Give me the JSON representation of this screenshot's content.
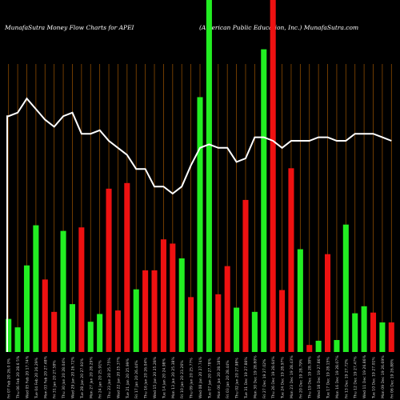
{
  "header": {
    "left": "MunafaSutra  Money Flow  Charts for APEI",
    "right": "(American  Public Education,  Inc.) MunafaSutra.com"
  },
  "colors": {
    "background": "#000000",
    "up": "#22ee22",
    "down": "#ee1111",
    "grid": "#8a4a00",
    "line": "#ffffff",
    "xlabel": "#cfcfcf"
  },
  "chart_data": {
    "type": "bar",
    "title": "MunafaSutra  Money Flow  Charts for APEI",
    "subtitle": "(American  Public Education,  Inc.) MunafaSutra.com",
    "categories": [
      "Fri 07 Feb 20 26.0 0%",
      "Thu 06 Feb 20 28.6 5%",
      "Wed 05 Feb 20 17.74%",
      "Tue 04 Feb 20 26.29%",
      "Mon 03 Feb 20 27.48%",
      "Fri 31 Jan 20 27.58%",
      "Thu 30 Jan 20 28.04%",
      "Wed 29 Jan 20 26.72%",
      "Tue 28 Jan 20 27.93%",
      "Mon 27 Jan 20 28.29%",
      "Fri 24 Jan 20 25.91%",
      "Thu 23 Jan 20 25.75%",
      "Wed 22 Jan 20 25.37%",
      "Tue 21 Jan 20 25.99%",
      "Fri 17 Jan 20 26.44%",
      "Thu 16 Jan 20 26.04%",
      "Wed 15 Jan 20 25.28%",
      "Tue 14 Jan 20 24.98%",
      "Mon 13 Jan 20 25.38%",
      "Fri 10 Jan 20 23.26%",
      "Thu 09 Jan 20 25.77%",
      "Wed 08 Jan 20 27.74%",
      "Tue 07 Jan 20 27.78%",
      "Mon 06 Jan 20 28.18%",
      "Fri 03 Jan 20 28.44%",
      "Thu 02 Jan 20 27.98%",
      "Tue 31 Dec 19 27.86%",
      "Mon 30 Dec 19 28.80%",
      "Fri 27 Dec 19 27.02%",
      "Thu 26 Dec 19 28.64%",
      "Tue 24 Dec 19 28.97%",
      "Mon 23 Dec 19 28.43%",
      "Fri 20 Dec 19 28.79%",
      "Thu 19 Dec 19 28.38%",
      "Wed 18 Dec 19 27.86%",
      "Tue 17 Dec 19 28.15%",
      "Mon 16 Dec 19 28.07%",
      "Fri 13 Dec 19 27.72%",
      "Thu 12 Dec 19 27.47%",
      "Wed 11 Dec 19 26.86%",
      "Tue 10 Dec 19 27.01%",
      "Mon 09 Dec 19 26.69%",
      "Fri 06 Dec 19 26.88%"
    ],
    "colors_sequence": [
      "up",
      "up",
      "up",
      "up",
      "down",
      "down",
      "up",
      "up",
      "down",
      "up",
      "up",
      "down",
      "down",
      "down",
      "up",
      "down",
      "down",
      "down",
      "down",
      "up",
      "down",
      "up",
      "up",
      "down",
      "down",
      "up",
      "down",
      "up",
      "up",
      "down",
      "down",
      "down",
      "up",
      "down",
      "up",
      "down",
      "up",
      "up",
      "up",
      "up",
      "down",
      "up",
      "down"
    ],
    "values": [
      47,
      35,
      123,
      180,
      103,
      57,
      172,
      68,
      177,
      43,
      54,
      232,
      59,
      240,
      89,
      116,
      116,
      160,
      154,
      133,
      78,
      362,
      500,
      82,
      122,
      63,
      216,
      57,
      430,
      500,
      88,
      261,
      146,
      10,
      16,
      139,
      17,
      181,
      55,
      65,
      56,
      42,
      42
    ],
    "line": [
      0.67,
      0.68,
      0.72,
      0.69,
      0.66,
      0.64,
      0.67,
      0.68,
      0.62,
      0.62,
      0.63,
      0.6,
      0.58,
      0.56,
      0.52,
      0.52,
      0.47,
      0.47,
      0.45,
      0.47,
      0.53,
      0.58,
      0.59,
      0.58,
      0.58,
      0.54,
      0.55,
      0.61,
      0.61,
      0.6,
      0.58,
      0.6,
      0.6,
      0.6,
      0.61,
      0.61,
      0.6,
      0.6,
      0.62,
      0.62,
      0.62,
      0.61,
      0.6
    ],
    "ylim": [
      0,
      500
    ],
    "grid": true,
    "xlabel": "",
    "ylabel": ""
  }
}
